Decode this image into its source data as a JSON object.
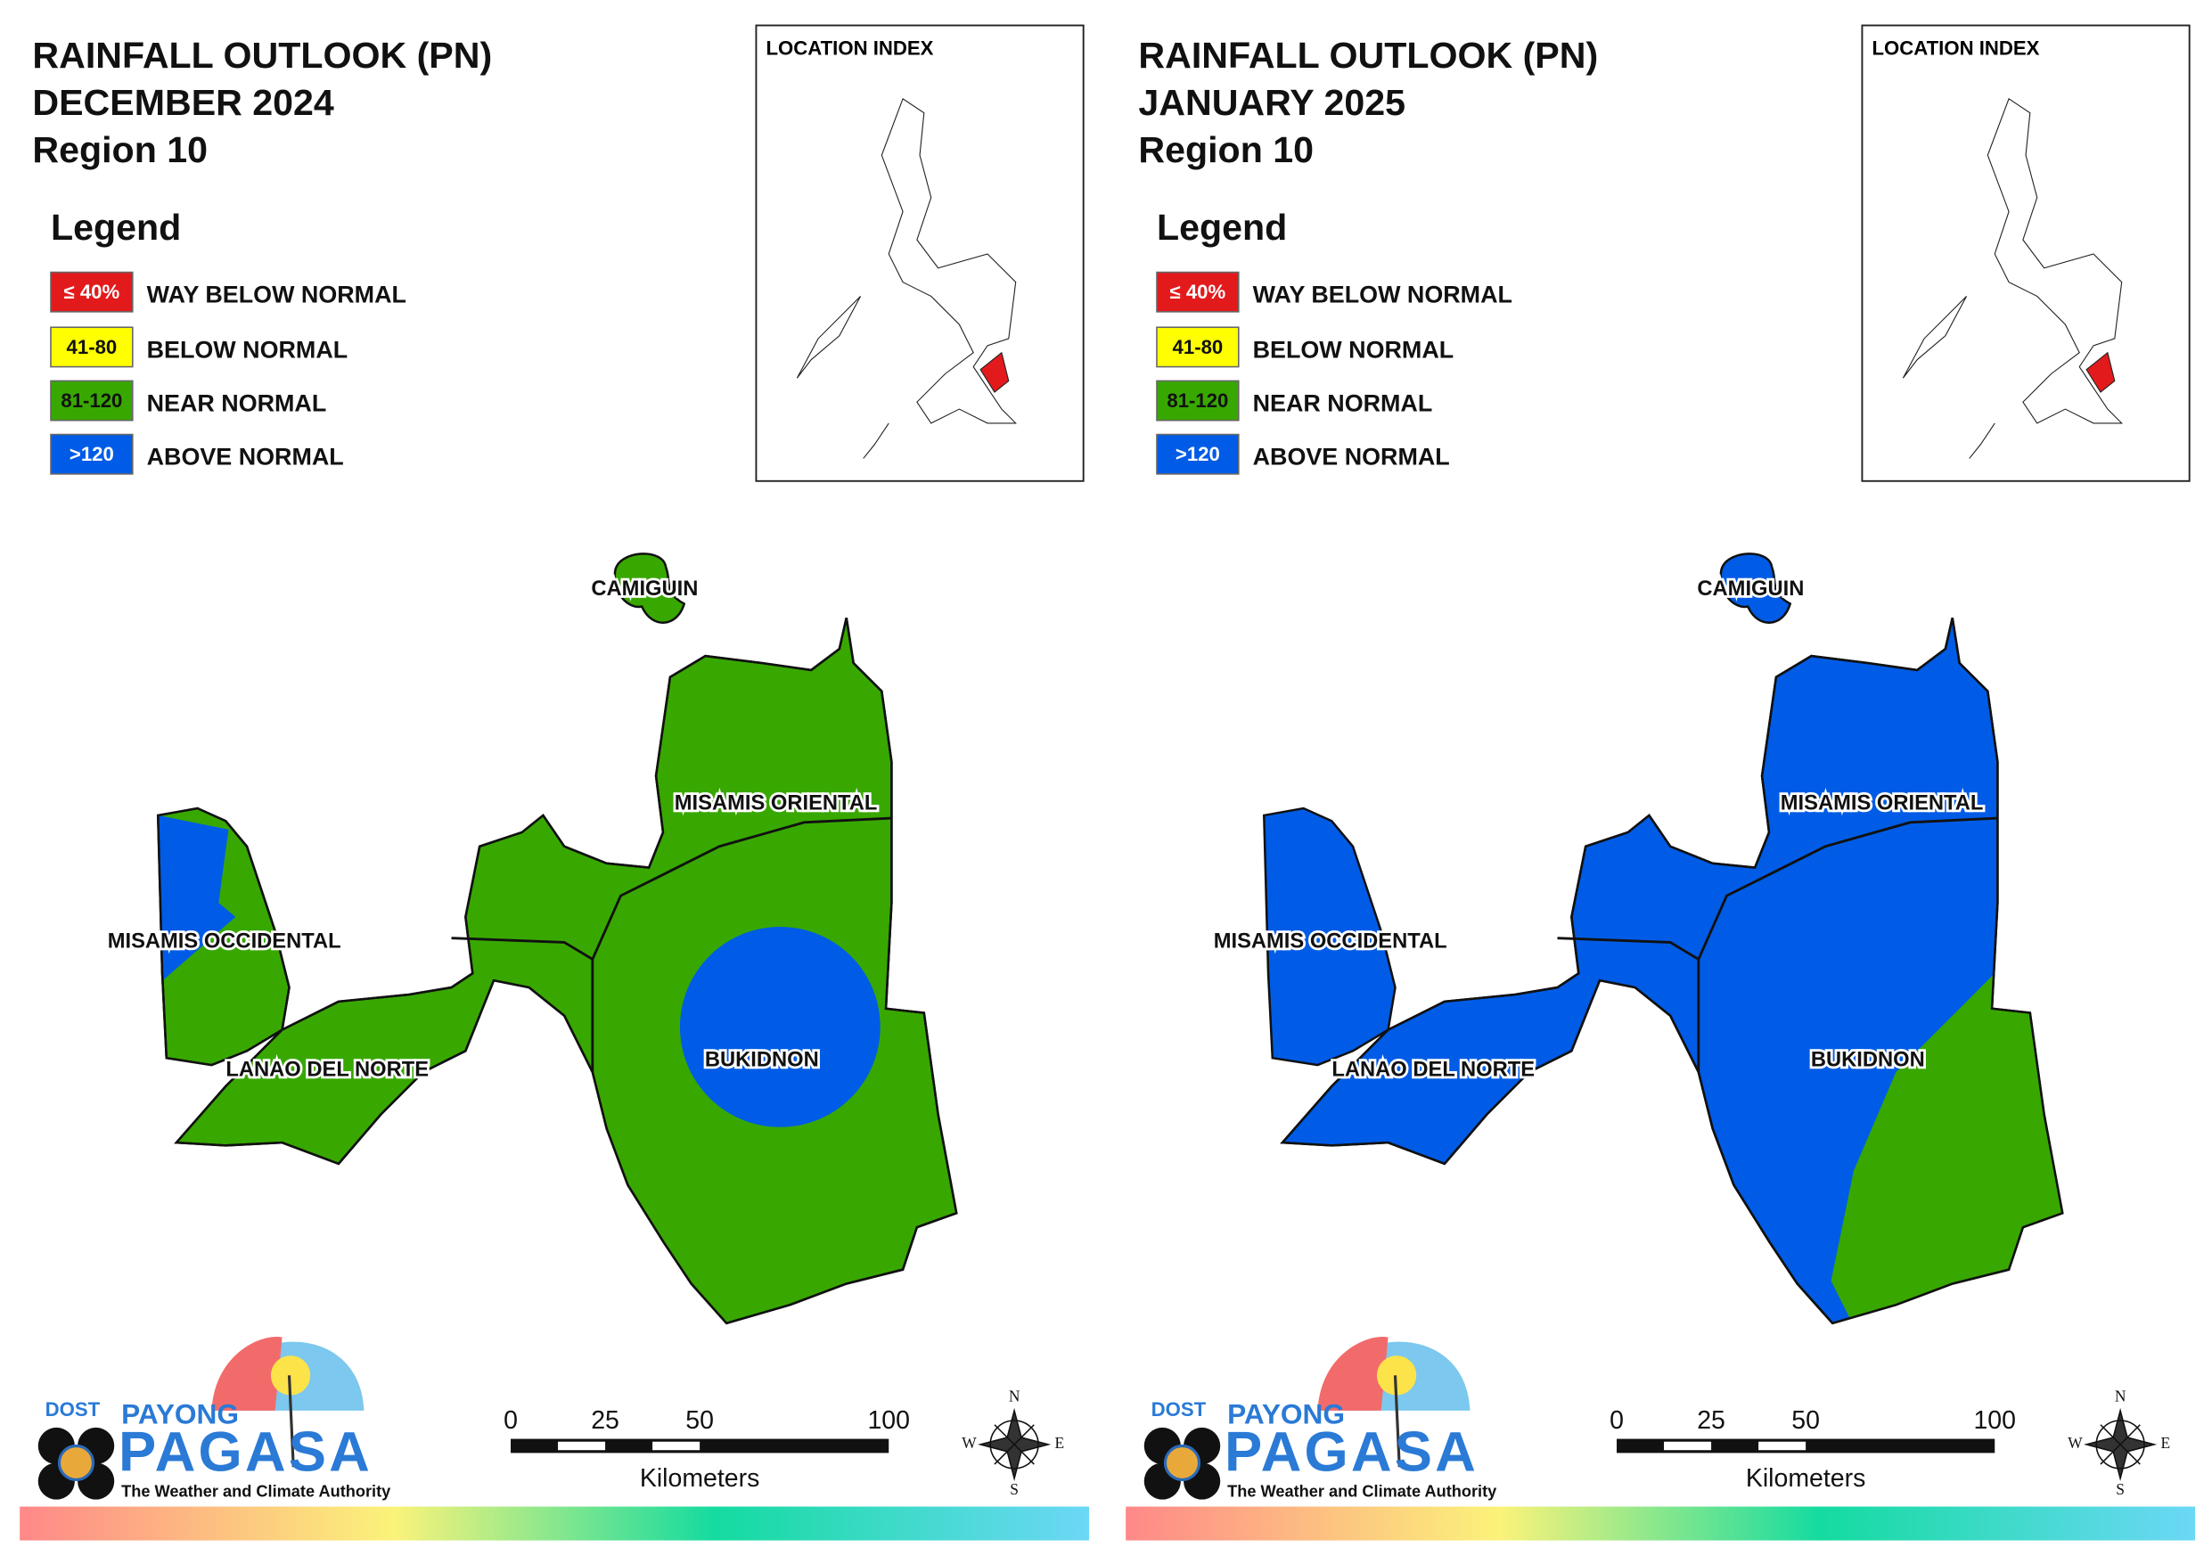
{
  "panels": [
    {
      "title_lines": [
        "RAINFALL OUTLOOK (PN)",
        "DECEMBER 2024",
        "Region 10"
      ],
      "legend_title": "Legend",
      "legend": [
        {
          "swatch": "≤ 40%",
          "label": "WAY BELOW NORMAL",
          "color": "#e31a1c"
        },
        {
          "swatch": "41-80",
          "label": "BELOW NORMAL",
          "color": "#ffff00"
        },
        {
          "swatch": "81-120",
          "label": "NEAR NORMAL",
          "color": "#38a800"
        },
        {
          "swatch": ">120",
          "label": "ABOVE NORMAL",
          "color": "#005ce6"
        }
      ],
      "location_index": "LOCATION INDEX",
      "provinces": [
        "CAMIGUIN",
        "MISAMIS ORIENTAL",
        "MISAMIS OCCIDENTAL",
        "LANAO DEL NORTE",
        "BUKIDNON"
      ],
      "scale_ticks": [
        0,
        25,
        50,
        100
      ],
      "scale_unit": "Kilometers",
      "compass": [
        "N",
        "E",
        "S",
        "W"
      ],
      "logo": {
        "dost": "DOST",
        "payong": "PAYONG",
        "pagasa": "PAGASA",
        "tagline": "The Weather and Climate Authority"
      }
    },
    {
      "title_lines": [
        "RAINFALL OUTLOOK (PN)",
        "JANUARY 2025",
        "Region 10"
      ],
      "legend_title": "Legend",
      "legend": [
        {
          "swatch": "≤ 40%",
          "label": "WAY BELOW NORMAL",
          "color": "#e31a1c"
        },
        {
          "swatch": "41-80",
          "label": "BELOW NORMAL",
          "color": "#ffff00"
        },
        {
          "swatch": "81-120",
          "label": "NEAR NORMAL",
          "color": "#38a800"
        },
        {
          "swatch": ">120",
          "label": "ABOVE NORMAL",
          "color": "#005ce6"
        }
      ],
      "location_index": "LOCATION INDEX",
      "provinces": [
        "CAMIGUIN",
        "MISAMIS ORIENTAL",
        "MISAMIS OCCIDENTAL",
        "LANAO DEL NORTE",
        "BUKIDNON"
      ],
      "scale_ticks": [
        0,
        25,
        50,
        100
      ],
      "scale_unit": "Kilometers",
      "compass": [
        "N",
        "E",
        "S",
        "W"
      ],
      "logo": {
        "dost": "DOST",
        "payong": "PAYONG",
        "pagasa": "PAGASA",
        "tagline": "The Weather and Climate Authority"
      }
    }
  ]
}
